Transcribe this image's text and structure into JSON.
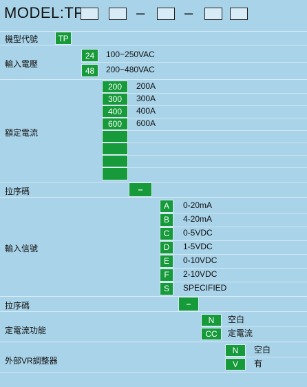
{
  "title": "MODEL:TP",
  "dash": "–",
  "rows": {
    "model_code": {
      "label": "機型代號",
      "code": "TP"
    },
    "input_voltage": {
      "label": "輸入電壓",
      "options": [
        {
          "code": "24",
          "desc": "100~250VAC"
        },
        {
          "code": "48",
          "desc": "200~480VAC"
        }
      ]
    },
    "rated_current": {
      "label": "額定電流",
      "options": [
        {
          "code": "200",
          "desc": "200A"
        },
        {
          "code": "300",
          "desc": "300A"
        },
        {
          "code": "400",
          "desc": "400A"
        },
        {
          "code": "600",
          "desc": "600A"
        },
        {
          "code": "",
          "desc": ""
        },
        {
          "code": "",
          "desc": ""
        },
        {
          "code": "",
          "desc": ""
        },
        {
          "code": "",
          "desc": ""
        }
      ]
    },
    "sep1": {
      "label": "拉序碼",
      "code": "–"
    },
    "input_signal": {
      "label": "輸入信號",
      "options": [
        {
          "code": "A",
          "desc": "0-20mA"
        },
        {
          "code": "B",
          "desc": "4-20mA"
        },
        {
          "code": "C",
          "desc": "0-5VDC"
        },
        {
          "code": "D",
          "desc": "1-5VDC"
        },
        {
          "code": "E",
          "desc": "0-10VDC"
        },
        {
          "code": "F",
          "desc": "2-10VDC"
        },
        {
          "code": "S",
          "desc": "SPECIFIED"
        }
      ]
    },
    "sep2": {
      "label": "拉序碼",
      "code": "–"
    },
    "const_current": {
      "label": "定電流功能",
      "options": [
        {
          "code": "N",
          "desc": "空白"
        },
        {
          "code": "CC",
          "desc": "定電流"
        }
      ]
    },
    "external_vr": {
      "label": "外部VR調整器",
      "options": [
        {
          "code": "N",
          "desc": "空白"
        },
        {
          "code": "V",
          "desc": "有"
        }
      ]
    }
  },
  "colors": {
    "background": "#a9d3e8",
    "code_green": "#169a3a"
  }
}
